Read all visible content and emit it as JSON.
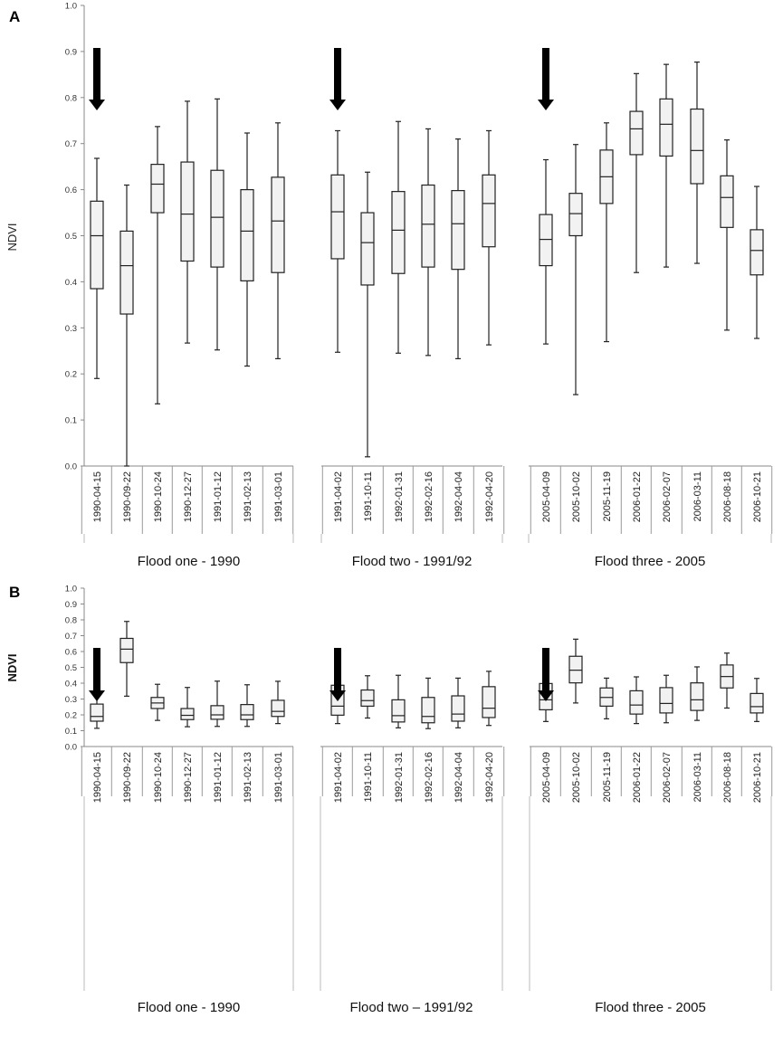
{
  "chart_data": [
    {
      "panel_label": "A",
      "type": "box",
      "ylabel": "NDVI",
      "ylim": [
        0,
        1
      ],
      "yticks": [
        "0.0",
        "0.1",
        "0.2",
        "0.3",
        "0.4",
        "0.5",
        "0.6",
        "0.7",
        "0.8",
        "0.9",
        "1.0"
      ],
      "groups": [
        {
          "label": "Flood one - 1990",
          "categories": [
            "1990-04-15",
            "1990-09-22",
            "1990-10-24",
            "1990-12-27",
            "1991-01-12",
            "1991-02-13",
            "1991-03-01"
          ],
          "boxes": [
            {
              "min": 0.19,
              "q1": 0.385,
              "median": 0.5,
              "q3": 0.575,
              "max": 0.668
            },
            {
              "min": 0.0,
              "q1": 0.33,
              "median": 0.435,
              "q3": 0.51,
              "max": 0.61
            },
            {
              "min": 0.135,
              "q1": 0.55,
              "median": 0.612,
              "q3": 0.655,
              "max": 0.737
            },
            {
              "min": 0.267,
              "q1": 0.445,
              "median": 0.547,
              "q3": 0.66,
              "max": 0.792
            },
            {
              "min": 0.252,
              "q1": 0.432,
              "median": 0.54,
              "q3": 0.642,
              "max": 0.797
            },
            {
              "min": 0.217,
              "q1": 0.402,
              "median": 0.51,
              "q3": 0.6,
              "max": 0.723
            },
            {
              "min": 0.233,
              "q1": 0.42,
              "median": 0.532,
              "q3": 0.627,
              "max": 0.745
            }
          ],
          "arrow_before": 0
        },
        {
          "label": "Flood two -  1991/92",
          "categories": [
            "1991-04-02",
            "1991-10-11",
            "1992-01-31",
            "1992-02-16",
            "1992-04-04",
            "1992-04-20"
          ],
          "boxes": [
            {
              "min": 0.247,
              "q1": 0.45,
              "median": 0.552,
              "q3": 0.632,
              "max": 0.728
            },
            {
              "min": 0.02,
              "q1": 0.393,
              "median": 0.485,
              "q3": 0.55,
              "max": 0.638
            },
            {
              "min": 0.245,
              "q1": 0.418,
              "median": 0.512,
              "q3": 0.596,
              "max": 0.748
            },
            {
              "min": 0.24,
              "q1": 0.432,
              "median": 0.525,
              "q3": 0.61,
              "max": 0.732
            },
            {
              "min": 0.233,
              "q1": 0.427,
              "median": 0.526,
              "q3": 0.598,
              "max": 0.71
            },
            {
              "min": 0.263,
              "q1": 0.476,
              "median": 0.57,
              "q3": 0.632,
              "max": 0.728
            }
          ],
          "arrow_before": 0
        },
        {
          "label": "Flood three -  2005",
          "categories": [
            "2005-04-09",
            "2005-10-02",
            "2005-11-19",
            "2006-01-22",
            "2006-02-07",
            "2006-03-11",
            "2006-08-18",
            "2006-10-21"
          ],
          "boxes": [
            {
              "min": 0.265,
              "q1": 0.435,
              "median": 0.492,
              "q3": 0.546,
              "max": 0.665
            },
            {
              "min": 0.155,
              "q1": 0.5,
              "median": 0.548,
              "q3": 0.592,
              "max": 0.698
            },
            {
              "min": 0.27,
              "q1": 0.57,
              "median": 0.628,
              "q3": 0.686,
              "max": 0.745
            },
            {
              "min": 0.42,
              "q1": 0.676,
              "median": 0.732,
              "q3": 0.77,
              "max": 0.852
            },
            {
              "min": 0.432,
              "q1": 0.673,
              "median": 0.742,
              "q3": 0.797,
              "max": 0.872
            },
            {
              "min": 0.44,
              "q1": 0.613,
              "median": 0.685,
              "q3": 0.775,
              "max": 0.877
            },
            {
              "min": 0.295,
              "q1": 0.518,
              "median": 0.583,
              "q3": 0.63,
              "max": 0.708
            },
            {
              "min": 0.277,
              "q1": 0.415,
              "median": 0.468,
              "q3": 0.513,
              "max": 0.607
            }
          ],
          "arrow_before": 0
        }
      ]
    },
    {
      "panel_label": "B",
      "type": "box",
      "ylabel": "NDVI",
      "ylim": [
        0,
        1
      ],
      "yticks": [
        "0.0",
        "0.1",
        "0.2",
        "0.3",
        "0.4",
        "0.5",
        "0.6",
        "0.7",
        "0.8",
        "0.9",
        "1.0"
      ],
      "groups": [
        {
          "label": "Flood one - 1990",
          "categories": [
            "1990-04-15",
            "1990-09-22",
            "1990-10-24",
            "1990-12-27",
            "1991-01-12",
            "1991-02-13",
            "1991-03-01"
          ],
          "boxes": [
            {
              "min": 0.115,
              "q1": 0.16,
              "median": 0.19,
              "q3": 0.268,
              "max": 0.362
            },
            {
              "min": 0.318,
              "q1": 0.53,
              "median": 0.615,
              "q3": 0.683,
              "max": 0.79
            },
            {
              "min": 0.165,
              "q1": 0.24,
              "median": 0.275,
              "q3": 0.31,
              "max": 0.393
            },
            {
              "min": 0.125,
              "q1": 0.17,
              "median": 0.197,
              "q3": 0.24,
              "max": 0.373
            },
            {
              "min": 0.127,
              "q1": 0.172,
              "median": 0.2,
              "q3": 0.258,
              "max": 0.413
            },
            {
              "min": 0.127,
              "q1": 0.17,
              "median": 0.2,
              "q3": 0.265,
              "max": 0.39
            },
            {
              "min": 0.145,
              "q1": 0.19,
              "median": 0.222,
              "q3": 0.292,
              "max": 0.412
            }
          ],
          "arrow_before": 0
        },
        {
          "label": "Flood two – 1991/92",
          "categories": [
            "1991-04-02",
            "1991-10-11",
            "1992-01-31",
            "1992-02-16",
            "1992-04-04",
            "1992-04-20"
          ],
          "boxes": [
            {
              "min": 0.145,
              "q1": 0.198,
              "median": 0.255,
              "q3": 0.387,
              "max": 0.485
            },
            {
              "min": 0.18,
              "q1": 0.255,
              "median": 0.29,
              "q3": 0.357,
              "max": 0.447
            },
            {
              "min": 0.118,
              "q1": 0.155,
              "median": 0.195,
              "q3": 0.295,
              "max": 0.45
            },
            {
              "min": 0.113,
              "q1": 0.15,
              "median": 0.19,
              "q3": 0.31,
              "max": 0.432
            },
            {
              "min": 0.118,
              "q1": 0.16,
              "median": 0.205,
              "q3": 0.32,
              "max": 0.432
            },
            {
              "min": 0.133,
              "q1": 0.183,
              "median": 0.242,
              "q3": 0.378,
              "max": 0.475
            }
          ],
          "arrow_before": 0
        },
        {
          "label": "Flood three - 2005",
          "categories": [
            "2005-04-09",
            "2005-10-02",
            "2005-11-19",
            "2006-01-22",
            "2006-02-07",
            "2006-03-11",
            "2006-08-18",
            "2006-10-21"
          ],
          "boxes": [
            {
              "min": 0.158,
              "q1": 0.232,
              "median": 0.295,
              "q3": 0.398,
              "max": 0.52
            },
            {
              "min": 0.275,
              "q1": 0.402,
              "median": 0.482,
              "q3": 0.57,
              "max": 0.678
            },
            {
              "min": 0.175,
              "q1": 0.255,
              "median": 0.31,
              "q3": 0.37,
              "max": 0.432
            },
            {
              "min": 0.145,
              "q1": 0.205,
              "median": 0.262,
              "q3": 0.352,
              "max": 0.44
            },
            {
              "min": 0.15,
              "q1": 0.212,
              "median": 0.272,
              "q3": 0.372,
              "max": 0.45
            },
            {
              "min": 0.165,
              "q1": 0.228,
              "median": 0.295,
              "q3": 0.402,
              "max": 0.503
            },
            {
              "min": 0.243,
              "q1": 0.37,
              "median": 0.442,
              "q3": 0.515,
              "max": 0.59
            },
            {
              "min": 0.158,
              "q1": 0.212,
              "median": 0.252,
              "q3": 0.335,
              "max": 0.43
            }
          ],
          "arrow_before": 0
        }
      ]
    }
  ]
}
